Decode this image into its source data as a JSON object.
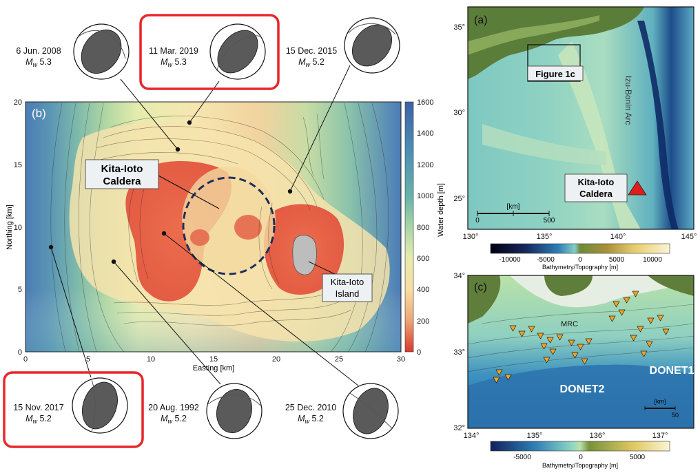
{
  "panel_b": {
    "label": "(b)",
    "x_label": "Easting [km]",
    "y_label": "Northing [km]",
    "x_ticks": [
      "0",
      "5",
      "10",
      "15",
      "20",
      "25",
      "30"
    ],
    "y_ticks": [
      "0",
      "5",
      "10",
      "15",
      "20"
    ],
    "colorbar_label": "Water depth [m]",
    "colorbar_ticks": [
      "1600",
      "1400",
      "1200",
      "1000",
      "800",
      "600",
      "400",
      "200",
      "0"
    ],
    "caldera_label_line1": "Kita-Ioto",
    "caldera_label_line2": "Caldera",
    "island_label_line1": "Kita-Ioto",
    "island_label_line2": "Island"
  },
  "events": [
    {
      "date": "6 Jun. 2008",
      "mag": "5.3",
      "highlighted": false
    },
    {
      "date": "11 Mar. 2019",
      "mag": "5.3",
      "highlighted": true
    },
    {
      "date": "15 Dec. 2015",
      "mag": "5.2",
      "highlighted": false
    },
    {
      "date": "15 Nov. 2017",
      "mag": "5.2",
      "highlighted": true
    },
    {
      "date": "20 Aug. 1992",
      "mag": "5.2",
      "highlighted": false
    },
    {
      "date": "25 Dec. 2010",
      "mag": "5.2",
      "highlighted": false
    }
  ],
  "magnitude_symbol": "M",
  "magnitude_subscript": "w",
  "panel_a": {
    "label": "(a)",
    "lat_ticks": [
      "35°",
      "30°",
      "25°"
    ],
    "lon_ticks": [
      "130°",
      "135°",
      "140°",
      "145°"
    ],
    "box_label": "Figure 1c",
    "arc_label": "Izu-Bonin Arc",
    "caldera_label_line1": "Kita-Ioto",
    "caldera_label_line2": "Caldera",
    "scale_unit": "[km]",
    "scale_start": "0",
    "scale_end": "500",
    "colorbar_label": "Bathymetry/Topography [m]",
    "colorbar_ticks": [
      "-10000",
      "-5000",
      "0",
      "5000",
      "10000"
    ]
  },
  "panel_c": {
    "label": "(c)",
    "lat_ticks": [
      "34°",
      "33°",
      "32°"
    ],
    "lon_ticks": [
      "134°",
      "135°",
      "136°",
      "137°"
    ],
    "mrc_label": "MRC",
    "donet1_label": "DONET1",
    "donet2_label": "DONET2",
    "scale_unit": "[km]",
    "scale_end": "50",
    "colorbar_label": "Bathymetry/Topography [m]",
    "colorbar_ticks": [
      "-5000",
      "0",
      "5000"
    ]
  },
  "colors": {
    "highlight_box": "#e8262b",
    "caldera_ring": "#1f2d5c",
    "station_marker": "#f3a323",
    "volcano_marker": "#e01c1c",
    "focal_fill": "#5a5a5a"
  }
}
